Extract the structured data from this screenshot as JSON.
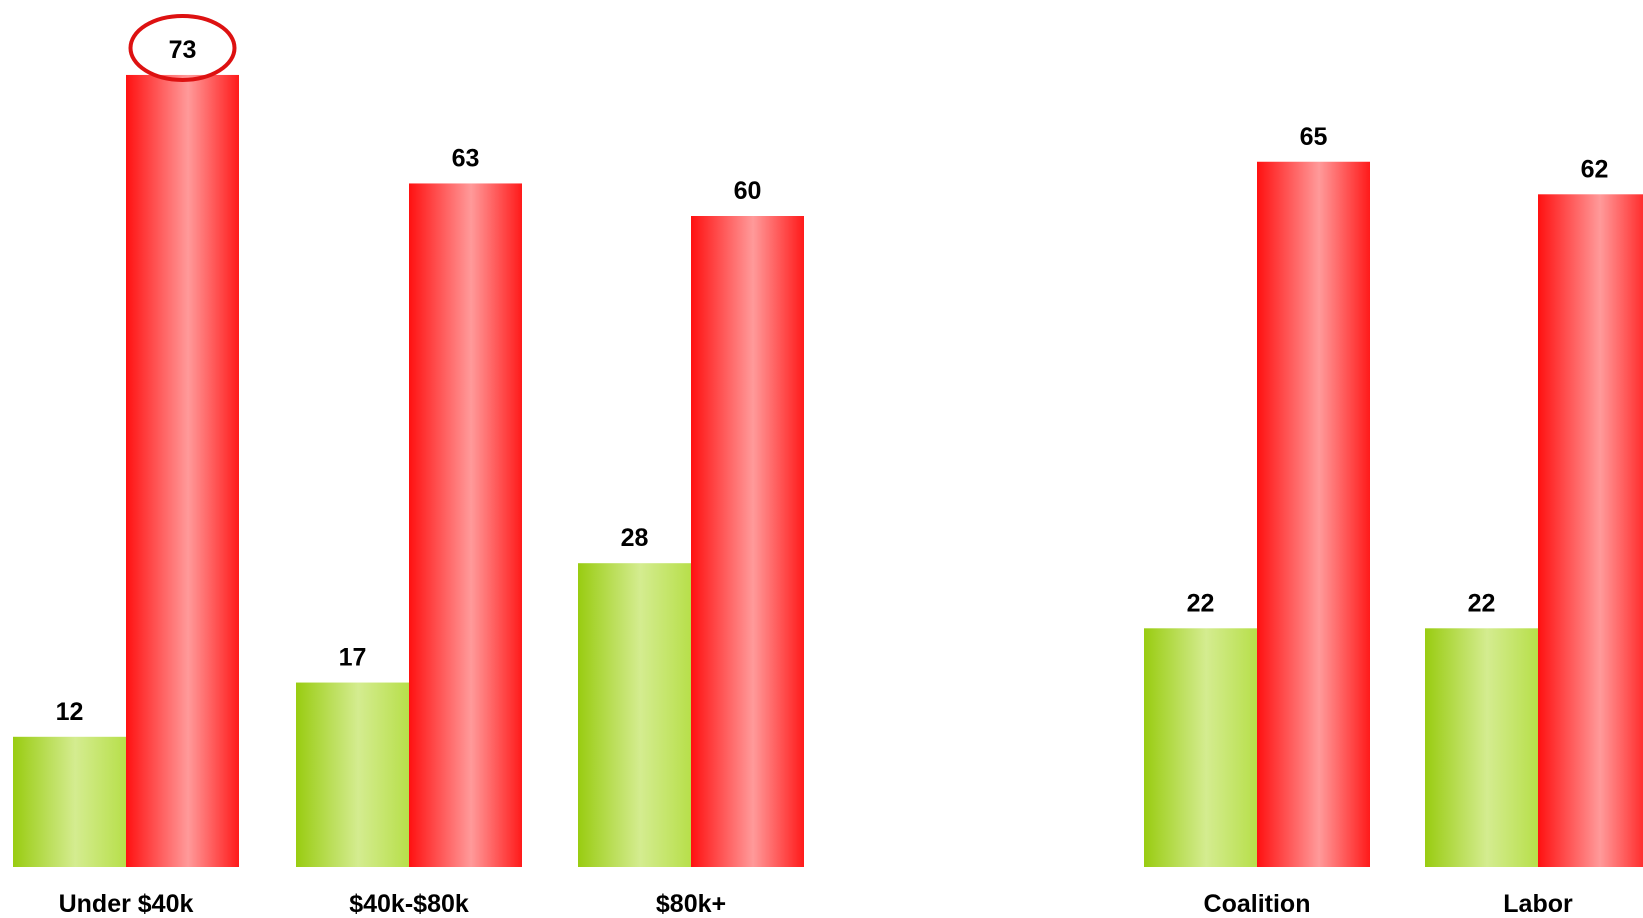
{
  "colors": {
    "green_series": "#99cc11",
    "red_series": "#ff1111",
    "highlight_ring": "#dd1111"
  },
  "chart_data": {
    "type": "bar",
    "categories": [
      "Under $40k",
      "$40k-$80k",
      "$80k+",
      "Coalition",
      "Labor"
    ],
    "series": [
      {
        "values": [
          12,
          17,
          28,
          22,
          22
        ]
      },
      {
        "values": [
          73,
          63,
          60,
          65,
          62
        ]
      }
    ],
    "highlighted": {
      "series": 1,
      "category": 0
    },
    "ylim": [
      0,
      73
    ],
    "grid": false,
    "legend": "none"
  }
}
